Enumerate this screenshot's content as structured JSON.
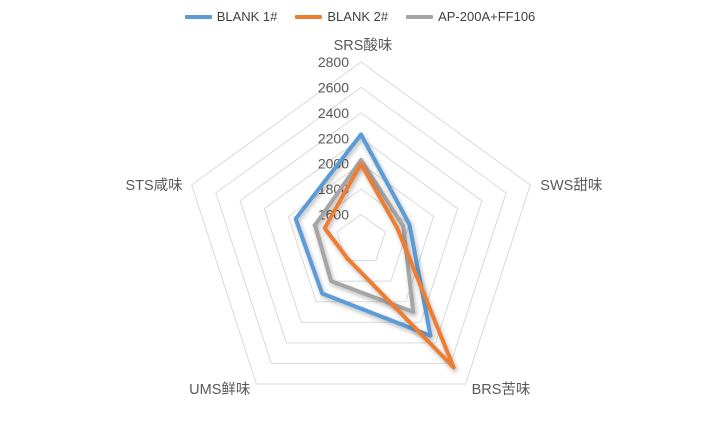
{
  "background": "#FFFFFF",
  "legend": {
    "position": "top-center",
    "swatch_style": "line"
  },
  "chart_data": {
    "type": "radar",
    "title": "",
    "categories": [
      "SRS酸味",
      "SWS甜味",
      "BRS苦味",
      "UMS鲜味",
      "STS咸味"
    ],
    "series": [
      {
        "name": "BLANK 1#",
        "color": "#5B9BD5",
        "values": [
          2230,
          1800,
          2330,
          1920,
          1940
        ]
      },
      {
        "name": "BLANK 2#",
        "color": "#ED7D31",
        "values": [
          2000,
          1700,
          2640,
          1580,
          1700
        ]
      },
      {
        "name": "AP-200A+FF106",
        "color": "#A5A5A5",
        "values": [
          2030,
          1750,
          2100,
          1800,
          1780
        ]
      }
    ],
    "axis": {
      "min": 1400,
      "max": 2800,
      "step": 200,
      "tick_labels": [
        "2800",
        "2600",
        "2400",
        "2200",
        "2000",
        "1800",
        "1600"
      ]
    },
    "grid": "concentric-pentagon-rings",
    "spokes_visible": false,
    "legend_position": "top",
    "colors": {
      "gridline": "#D9D9D9",
      "tick_text": "#595959",
      "category_text": "#595959",
      "legend_text": "#404040"
    }
  }
}
